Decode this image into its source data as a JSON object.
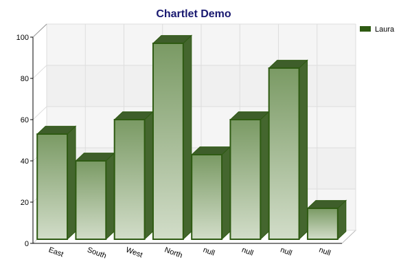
{
  "chart_data": {
    "type": "bar",
    "title": "Chartlet Demo",
    "categories": [
      "East",
      "South",
      "West",
      "North",
      "null",
      "null",
      "null",
      "null"
    ],
    "series": [
      {
        "name": "Laura",
        "values": [
          53,
          40,
          60,
          97,
          43,
          60,
          85,
          17
        ]
      }
    ],
    "ylim": [
      0,
      100
    ],
    "yticks": [
      "0",
      "20",
      "40",
      "60",
      "80",
      "100"
    ],
    "grid": true,
    "legend_position": "top-right",
    "colors": {
      "title": "#191970",
      "bar_light": "#d2ddc9",
      "bar_dark": "#7a9a64",
      "bar_stroke": "#2e5a12",
      "bar_side": "#44662e",
      "bar_top": "#3e5e2a",
      "legend_swatch": "#2e5a12",
      "wall": "#f5f5f5",
      "grid": "#dddddd"
    }
  }
}
